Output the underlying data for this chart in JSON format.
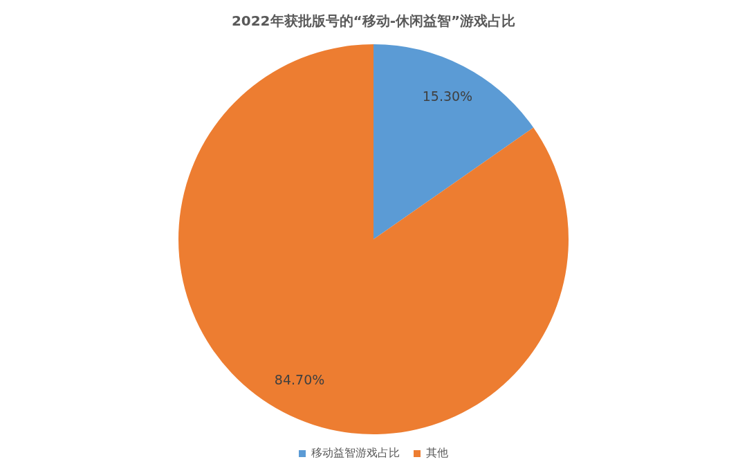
{
  "chart_data": {
    "type": "pie",
    "title": "2022年获批版号的“移动-休闲益智”游戏占比",
    "categories": [
      "移动益智游戏占比",
      "其他"
    ],
    "values": [
      15.3,
      84.7
    ],
    "value_labels": [
      "15.30%",
      "84.70%"
    ],
    "colors": [
      "#5b9bd5",
      "#ed7d31"
    ],
    "legend": "bottom"
  }
}
